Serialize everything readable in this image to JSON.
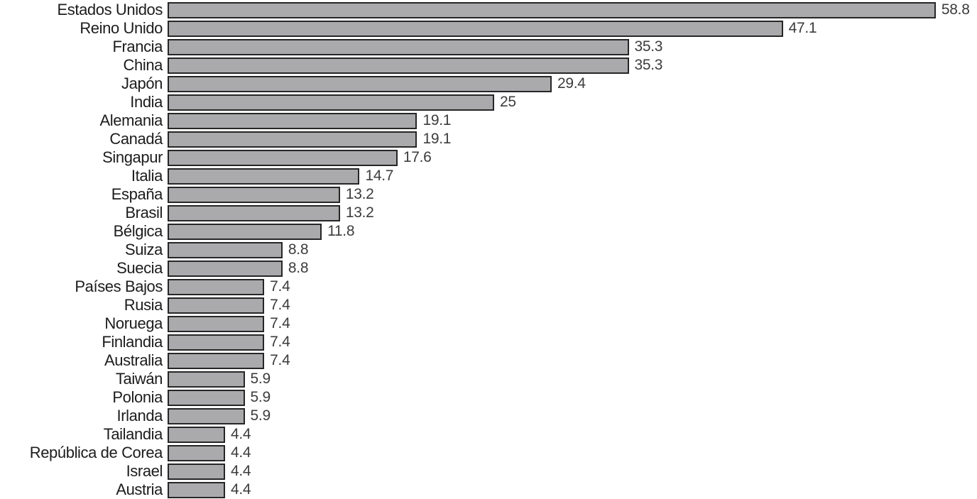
{
  "chart_data": {
    "type": "bar",
    "orientation": "horizontal",
    "title": "",
    "xlabel": "",
    "ylabel": "",
    "grid": false,
    "legend": false,
    "xlim": [
      0,
      61.6
    ],
    "categories": [
      "Estados Unidos",
      "Reino Unido",
      "Francia",
      "China",
      "Japón",
      "India",
      "Alemania",
      "Canadá",
      "Singapur",
      "Italia",
      "España",
      "Brasil",
      "Bélgica",
      "Suiza",
      "Suecia",
      "Países Bajos",
      "Rusia",
      "Noruega",
      "Finlandia",
      "Australia",
      "Taiwán",
      "Polonia",
      "Irlanda",
      "Tailandia",
      "República de Corea",
      "Israel",
      "Austria"
    ],
    "values": [
      58.8,
      47.1,
      35.3,
      35.3,
      29.4,
      25,
      19.1,
      19.1,
      17.6,
      14.7,
      13.2,
      13.2,
      11.8,
      8.8,
      8.8,
      7.4,
      7.4,
      7.4,
      7.4,
      7.4,
      5.9,
      5.9,
      5.9,
      4.4,
      4.4,
      4.4,
      4.4
    ],
    "value_labels": [
      "58.8",
      "47.1",
      "35.3",
      "35.3",
      "29.4",
      "25",
      "19.1",
      "19.1",
      "17.6",
      "14.7",
      "13.2",
      "13.2",
      "11.8",
      "8.8",
      "8.8",
      "7.4",
      "7.4",
      "7.4",
      "7.4",
      "7.4",
      "5.9",
      "5.9",
      "5.9",
      "4.4",
      "4.4",
      "4.4",
      "4.4"
    ],
    "bar_color": "#aaaaac",
    "bar_border_color": "#262626",
    "category_label_color": "#1c1c1c",
    "value_label_color": "#3c3c3c",
    "background_color": "#ffffff"
  }
}
